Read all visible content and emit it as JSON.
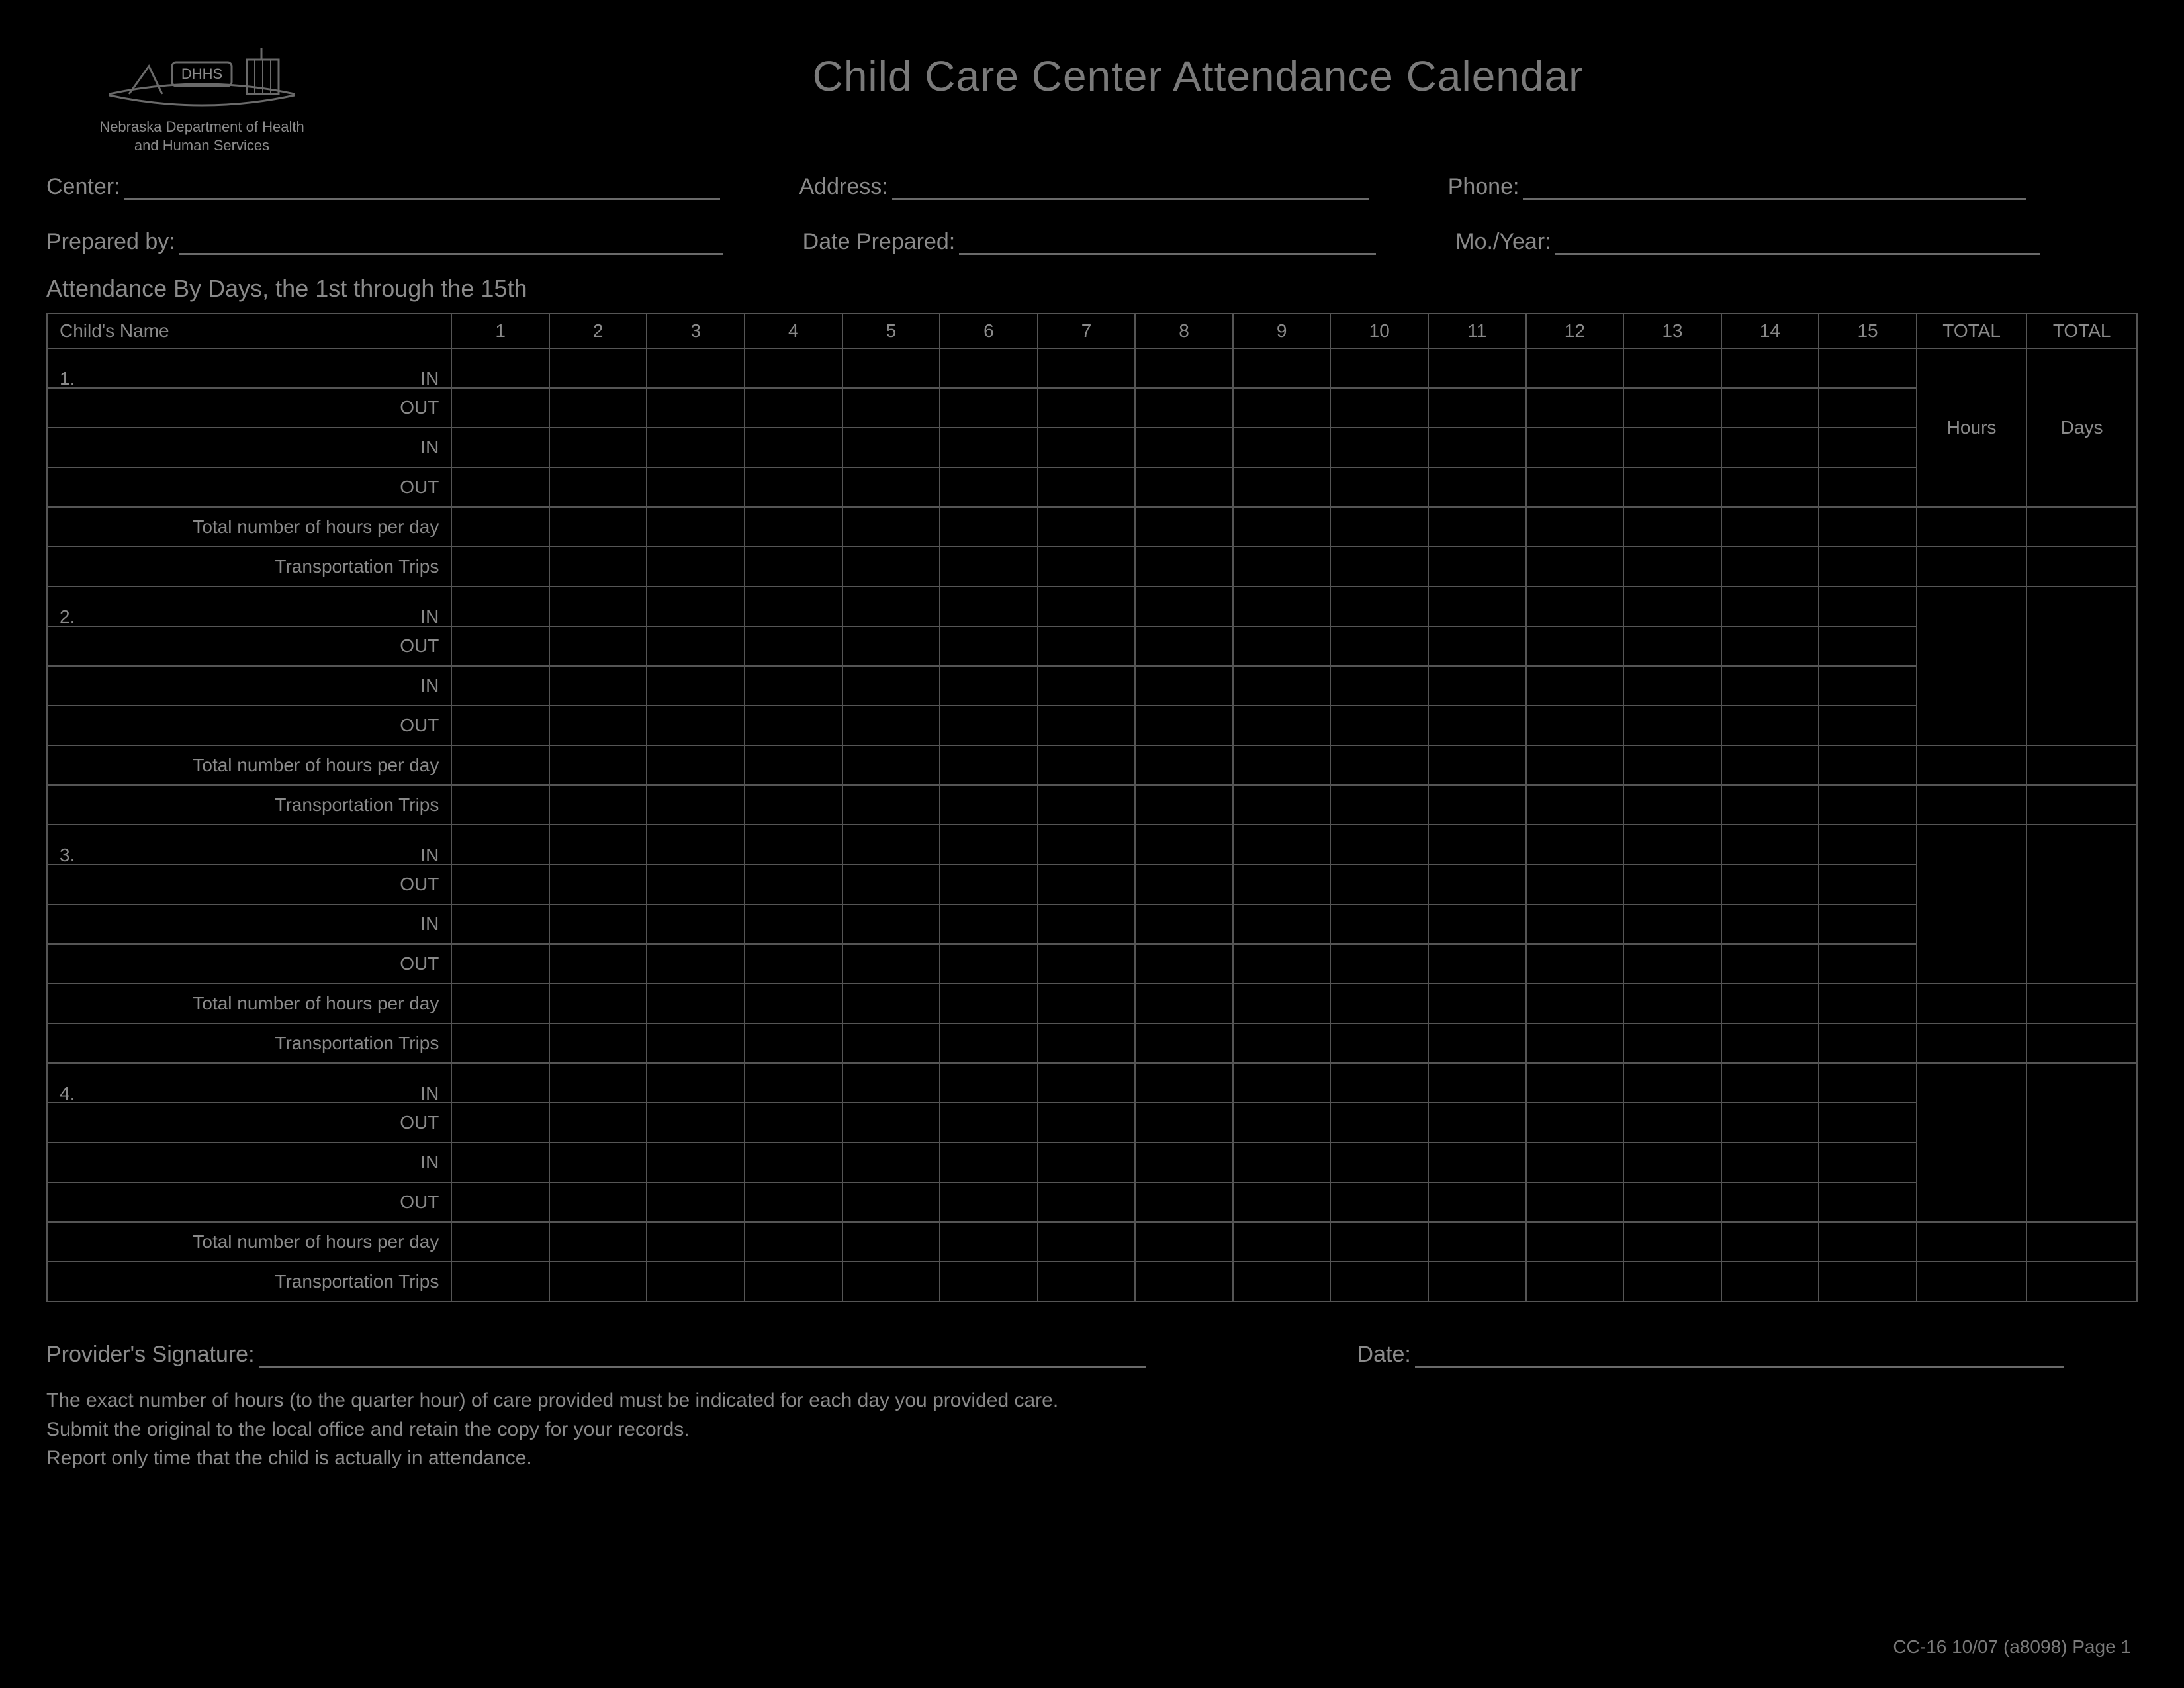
{
  "colors": {
    "background": "#000000",
    "text": "#8a8a8a",
    "border": "#555555"
  },
  "logo": {
    "abbr": "DHHS",
    "dept_line1": "Nebraska Department of Health",
    "dept_line2": "and Human Services"
  },
  "title": "Child Care Center Attendance Calendar",
  "fields": {
    "center": "Center:",
    "address": "Address:",
    "phone": "Phone:",
    "prepared_by": "Prepared by:",
    "date_prepared": "Date Prepared:",
    "mo_year": "Mo./Year:"
  },
  "section_title": "Attendance By Days, the 1st through the 15th",
  "table": {
    "name_header": "Child's Name",
    "days": [
      "1",
      "2",
      "3",
      "4",
      "5",
      "6",
      "7",
      "8",
      "9",
      "10",
      "11",
      "12",
      "13",
      "14",
      "15"
    ],
    "total_header": "TOTAL",
    "total_sub_hours": "Hours",
    "total_sub_days": "Days",
    "row_labels": {
      "in": "IN",
      "out": "OUT",
      "total_hours": "Total number of hours per day",
      "transport": "Transportation Trips"
    },
    "children": [
      "1.",
      "2.",
      "3.",
      "4."
    ]
  },
  "signature": {
    "provider": "Provider's Signature:",
    "date": "Date:"
  },
  "notes": [
    "The exact number of hours (to the quarter hour) of care provided must be indicated for each day you provided care.",
    "Submit the original to the local office and retain the copy for your records.",
    "Report only time that the child is actually in attendance."
  ],
  "form_id": "CC-16 10/07 (a8098) Page 1"
}
